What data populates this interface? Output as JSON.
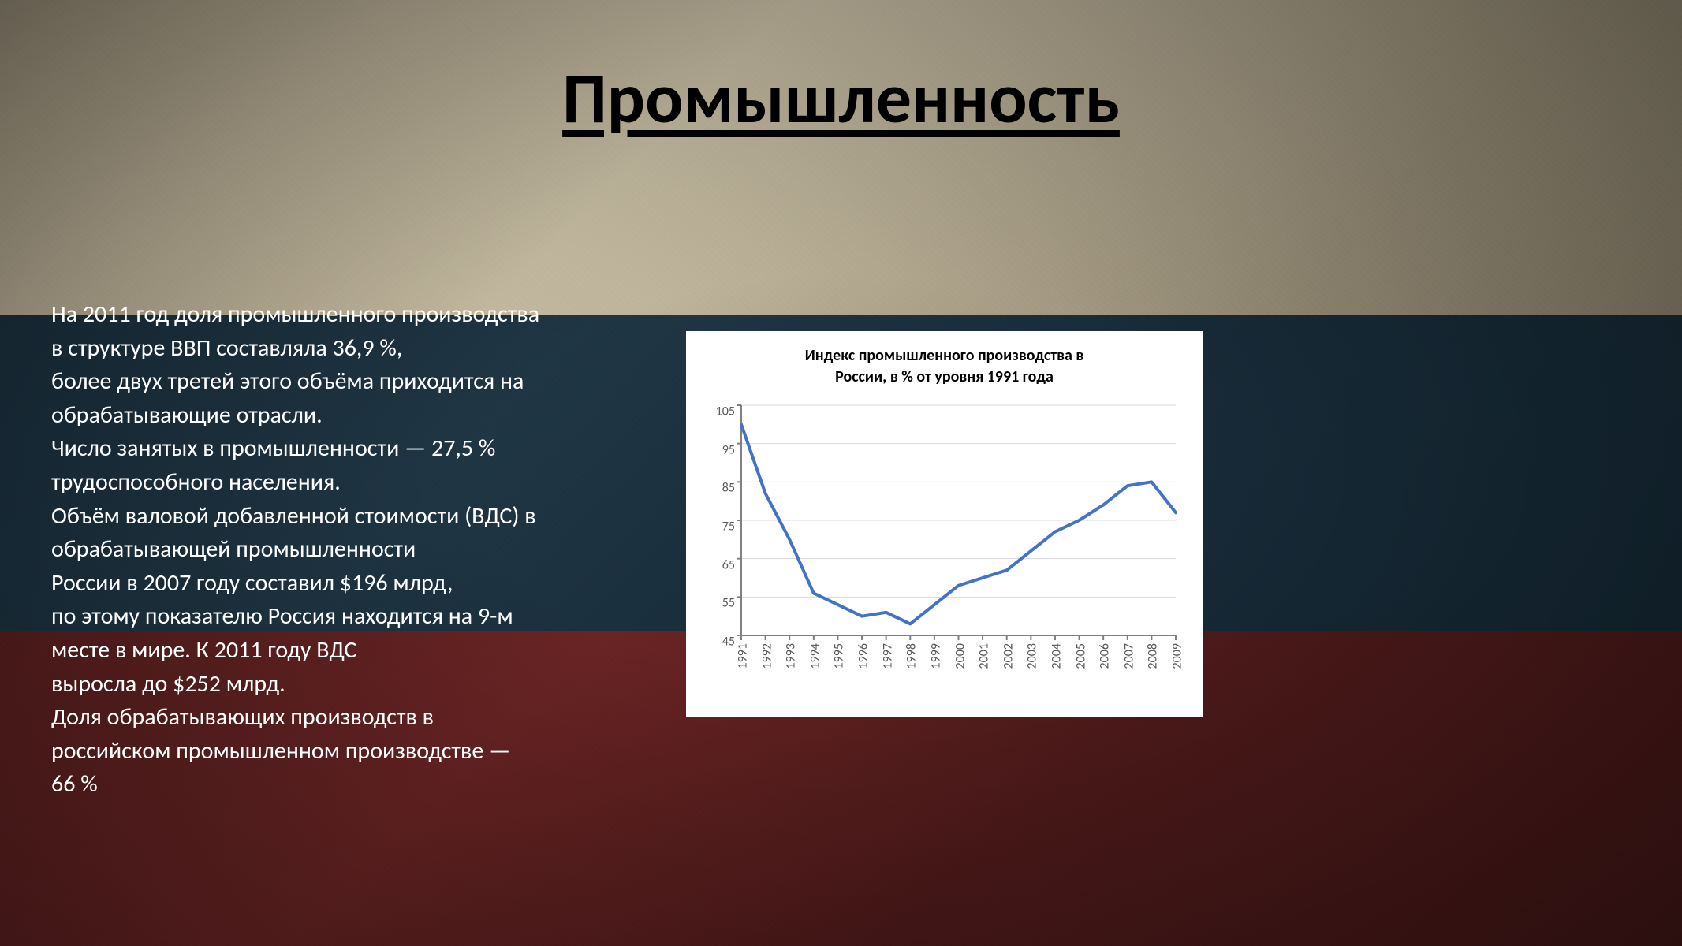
{
  "slide": {
    "title": "Промышленность",
    "title_fontsize": 90,
    "title_fontweight": "700",
    "title_color": "#000000",
    "body": "На 2011 год доля промышленного производства\nв структуре ВВП составляла 36,9 %,\nболее двух третей этого объёма приходится на\nобрабатывающие отрасли.\nЧисло занятых в промышленности — 27,5 %\nтрудоспособного населения.\nОбъём валовой добавленной стоимости (ВДС) в\nобрабатывающей промышленности\nРоссии в 2007 году составил $196 млрд,\nпо этому показателю Россия находится на 9-м\nместе в мире. К 2011 году ВДС\nвыросла до $252 млрд.\nДоля обрабатывающих производств в\nроссийском промышленном производстве —\n66 %",
    "body_fontsize": 30,
    "body_color": "#ffffff",
    "background_stripes": {
      "white": "#b5ab92",
      "blue": "#1b3240",
      "red": "#5a1f1f"
    }
  },
  "chart": {
    "type": "line",
    "title": "Индекс промышленного производства в\nРоссии, в % от уровня 1991 года",
    "title_fontsize": 20,
    "title_fontweight": "700",
    "title_color": "#000000",
    "background_color": "#ffffff",
    "grid_color": "#d9d9d9",
    "axis_color": "#808080",
    "tick_label_color": "#595959",
    "tick_label_fontsize": 16,
    "line_color": "#4472c4",
    "line_width": 4,
    "categories": [
      "1991",
      "1992",
      "1993",
      "1994",
      "1995",
      "1996",
      "1997",
      "1998",
      "1999",
      "2000",
      "2001",
      "2002",
      "2003",
      "2004",
      "2005",
      "2006",
      "2007",
      "2008",
      "2009"
    ],
    "values": [
      100,
      82,
      70,
      56,
      53,
      50,
      51,
      48,
      53,
      58,
      60,
      62,
      67,
      72,
      75,
      79,
      84,
      85,
      77
    ],
    "ylim": [
      45,
      105
    ],
    "ytick_step": 10,
    "yticks": [
      45,
      55,
      65,
      75,
      85,
      95,
      105
    ]
  }
}
